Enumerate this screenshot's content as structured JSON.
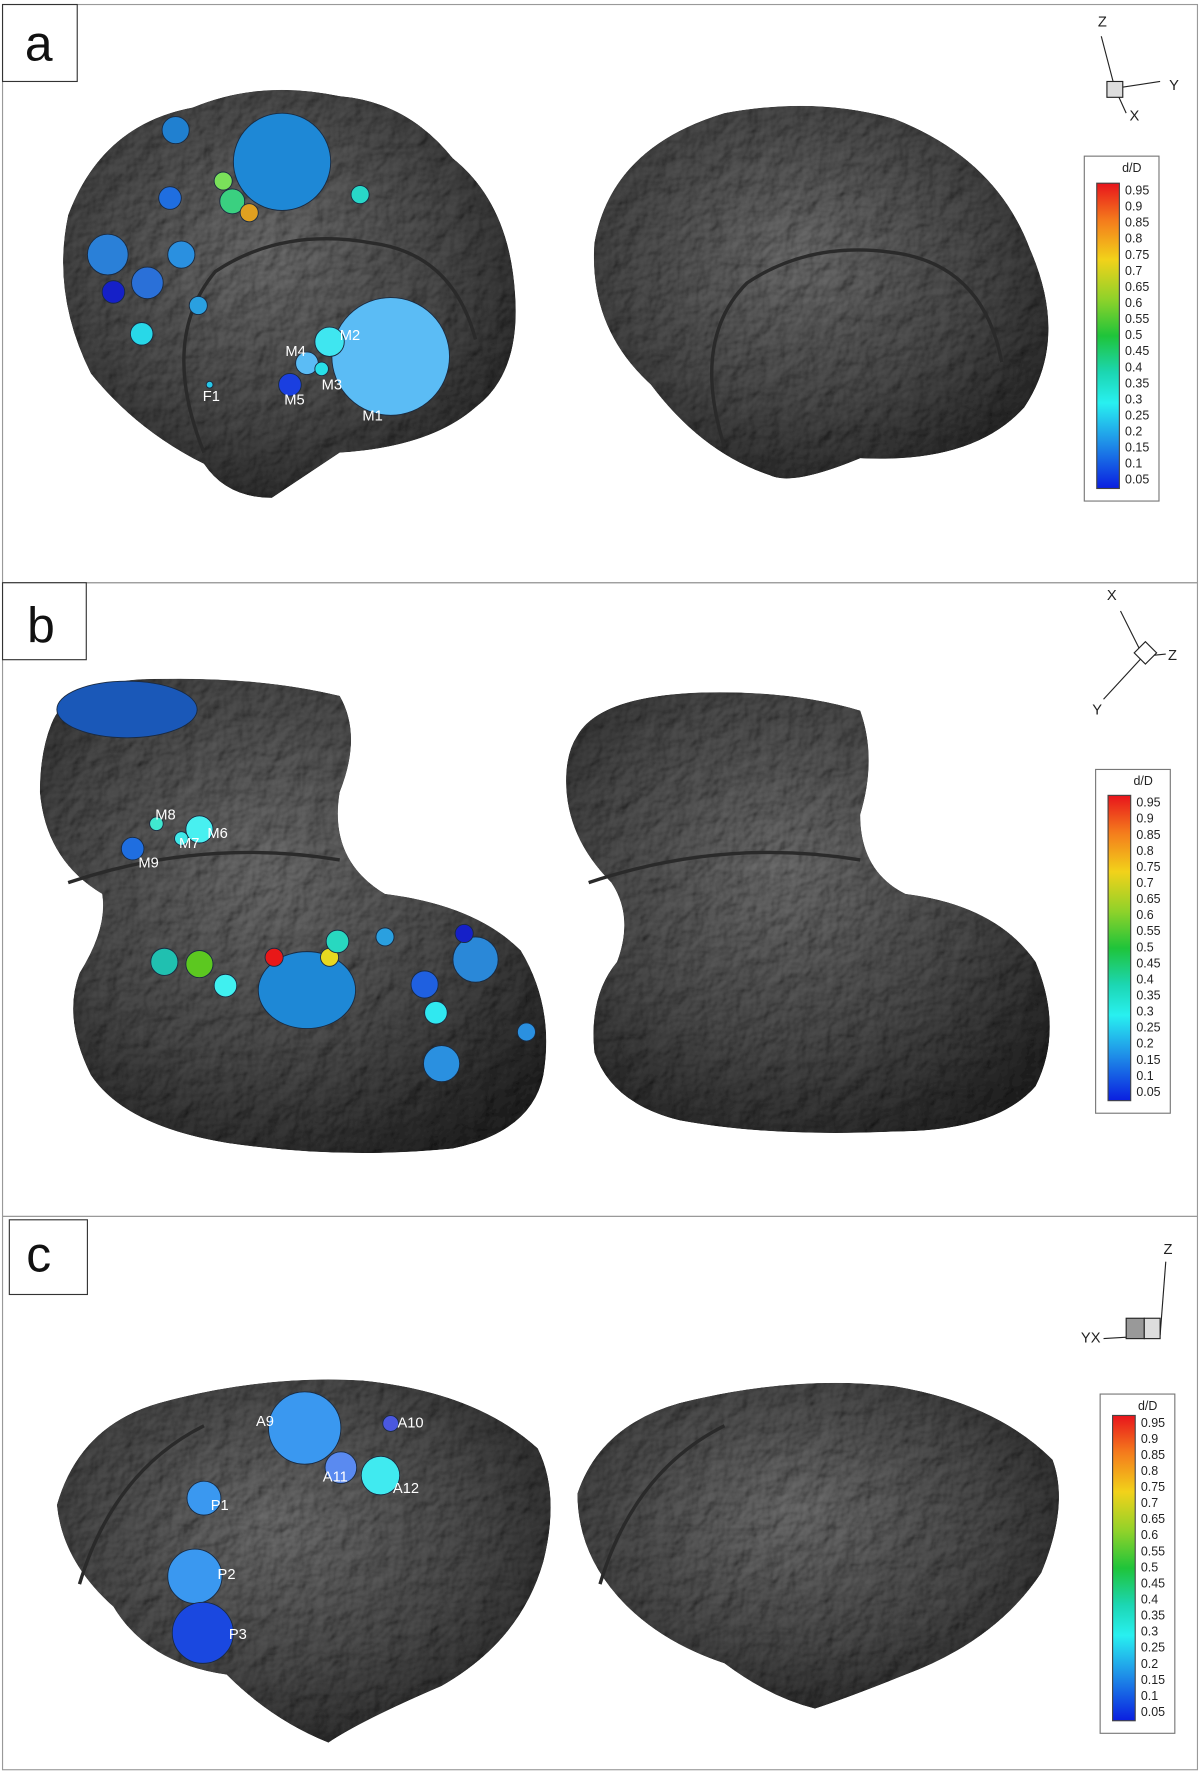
{
  "panels": [
    {
      "label": "a",
      "axes": [
        "Z",
        "Y",
        "X"
      ],
      "colorbar": {
        "title": "d/D",
        "ticks": [
          "0.95",
          "0.9",
          "0.85",
          "0.8",
          "0.75",
          "0.7",
          "0.65",
          "0.6",
          "0.55",
          "0.5",
          "0.45",
          "0.4",
          "0.35",
          "0.3",
          "0.25",
          "0.2",
          "0.15",
          "0.1",
          "0.05"
        ]
      },
      "crater_labels": [
        "M1",
        "M2",
        "M3",
        "M4",
        "M5",
        "F1"
      ]
    },
    {
      "label": "b",
      "axes": [
        "X",
        "Z",
        "Y"
      ],
      "colorbar": {
        "title": "d/D",
        "ticks": [
          "0.95",
          "0.9",
          "0.85",
          "0.8",
          "0.75",
          "0.7",
          "0.65",
          "0.6",
          "0.55",
          "0.5",
          "0.45",
          "0.4",
          "0.35",
          "0.3",
          "0.25",
          "0.2",
          "0.15",
          "0.1",
          "0.05"
        ]
      },
      "crater_labels": [
        "M6",
        "M7",
        "M8",
        "M9"
      ]
    },
    {
      "label": "c",
      "axes": [
        "Z",
        "YX"
      ],
      "colorbar": {
        "title": "d/D",
        "ticks": [
          "0.95",
          "0.9",
          "0.85",
          "0.8",
          "0.75",
          "0.7",
          "0.65",
          "0.6",
          "0.55",
          "0.5",
          "0.45",
          "0.4",
          "0.35",
          "0.3",
          "0.25",
          "0.2",
          "0.15",
          "0.1",
          "0.05"
        ]
      },
      "crater_labels": [
        "A9",
        "A10",
        "A11",
        "A12",
        "P1",
        "P2",
        "P3"
      ]
    }
  ]
}
